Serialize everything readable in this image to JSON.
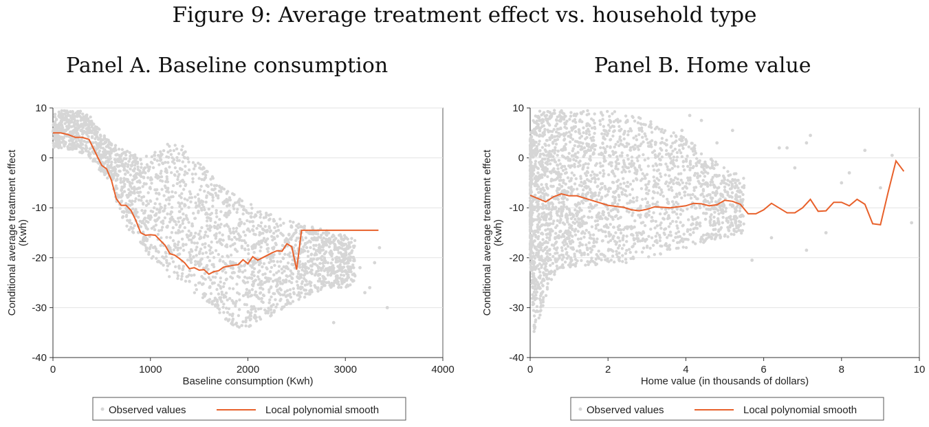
{
  "figure": {
    "title": "Figure 9: Average treatment effect vs. household type"
  },
  "colors": {
    "scatter": "#d6d6d6",
    "smooth": "#e8602a",
    "grid": "#e3e3e3",
    "axis": "#333333"
  },
  "chart_data": [
    {
      "type": "scatter",
      "panel_title": "Panel A. Baseline consumption",
      "xlabel": "Baseline consumption (Kwh)",
      "ylabel": "Conditional average treatment effect (Kwh)",
      "ylabel_lines": [
        "Conditional average treatment effect",
        "(Kwh)"
      ],
      "xlim": [
        0,
        4000
      ],
      "ylim": [
        -40,
        10
      ],
      "xticks": [
        0,
        1000,
        2000,
        3000,
        4000
      ],
      "yticks": [
        10,
        0,
        -10,
        -20,
        -30,
        -40
      ],
      "grid": true,
      "legend_position": "bottom",
      "legend": [
        "Observed values",
        "Local polynomial smooth"
      ],
      "series": [
        {
          "name": "Observed values",
          "kind": "scatter-cloud",
          "envelope": {
            "x": [
              0,
              100,
              200,
              300,
              400,
              500,
              600,
              700,
              800,
              900,
              1000,
              1100,
              1200,
              1300,
              1400,
              1500,
              1600,
              1700,
              1800,
              1900,
              2000,
              2100,
              2200,
              2300,
              2400,
              2500,
              2600,
              2700,
              2800,
              2900,
              3000,
              3100
            ],
            "upper": [
              9,
              9.5,
              9.5,
              9.5,
              8,
              5,
              3,
              2,
              1,
              0.5,
              1,
              2,
              3,
              3,
              1,
              -1,
              -3,
              -5,
              -6,
              -8,
              -9,
              -10,
              -11,
              -12,
              -12.5,
              -13,
              -13.5,
              -14,
              -14.5,
              -15,
              -15.5,
              -16
            ],
            "lower": [
              2,
              2,
              1.5,
              1,
              -0.5,
              -3,
              -5,
              -12,
              -15,
              -17,
              -20,
              -22,
              -24,
              -25,
              -26,
              -28,
              -29,
              -31,
              -33,
              -34,
              -34,
              -33,
              -32,
              -31,
              -30,
              -29,
              -28,
              -27,
              -26,
              -26,
              -26,
              -25
            ]
          },
          "outliers": [
            [
              3350,
              -18
            ],
            [
              3300,
              -21
            ],
            [
              3250,
              -26
            ],
            [
              3200,
              -27
            ],
            [
              3430,
              -30
            ],
            [
              2880,
              -33
            ],
            [
              3150,
              -22
            ],
            [
              3060,
              -19
            ]
          ]
        },
        {
          "name": "Local polynomial smooth",
          "kind": "line",
          "x": [
            0,
            80,
            150,
            230,
            300,
            370,
            450,
            500,
            550,
            600,
            650,
            700,
            750,
            800,
            850,
            900,
            950,
            1000,
            1050,
            1100,
            1150,
            1200,
            1250,
            1300,
            1350,
            1400,
            1450,
            1500,
            1550,
            1600,
            1650,
            1700,
            1750,
            1800,
            1850,
            1900,
            1950,
            2000,
            2050,
            2100,
            2150,
            2200,
            2250,
            2300,
            2350,
            2400,
            2450,
            2500,
            2550,
            2600,
            2650,
            2700,
            2750,
            2800,
            2850,
            2900,
            2950,
            3000,
            3050,
            3100,
            3150,
            3200,
            3250,
            3290,
            3340
          ],
          "y": [
            5,
            5,
            4.7,
            4.1,
            4.1,
            3.7,
            0.5,
            -1.5,
            -2.2,
            -4.5,
            -8.2,
            -9.5,
            -9.5,
            -10.5,
            -12.5,
            -15,
            -15.5,
            -15.4,
            -15.5,
            -16.5,
            -17.5,
            -19.2,
            -19.5,
            -20.2,
            -21,
            -22.2,
            -22,
            -22.5,
            -22.4,
            -23.3,
            -22.8,
            -22.6,
            -21.9,
            -21.7,
            -21.5,
            -21.4,
            -20.4,
            -21.2,
            -19.8,
            -20.5,
            -20,
            -19.5,
            -19,
            -18.6,
            -18.7,
            -17.2,
            -17.8,
            -22.4,
            -14.5,
            -14.5,
            -14.5,
            -14.5,
            -14.5,
            -14.5,
            -14.5,
            -14.5,
            -14.5,
            -14.5,
            -14.5,
            -14.5,
            -14.5,
            -14.5,
            -14.5,
            -14.5,
            -14.5
          ]
        }
      ]
    },
    {
      "type": "scatter",
      "panel_title": "Panel B. Home value",
      "xlabel": "Home value (in thousands of dollars)",
      "ylabel": "Conditional average treatment effect (Kwh)",
      "ylabel_lines": [
        "Conditional average treatment effect",
        "(Kwh)"
      ],
      "xlim": [
        0,
        10
      ],
      "ylim": [
        -40,
        10
      ],
      "xticks": [
        0,
        2,
        4,
        6,
        8,
        10
      ],
      "yticks": [
        10,
        0,
        -10,
        -20,
        -30,
        -40
      ],
      "grid": true,
      "legend_position": "bottom",
      "legend": [
        "Observed values",
        "Local polynomial smooth"
      ],
      "series": [
        {
          "name": "Observed values",
          "kind": "scatter-cloud",
          "envelope": {
            "x": [
              0,
              0.1,
              0.3,
              0.5,
              0.8,
              1.0,
              1.5,
              2.0,
              2.5,
              3.0,
              3.5,
              4.0,
              4.5,
              5.0,
              5.5
            ],
            "upper": [
              4,
              9,
              9.5,
              9.5,
              9.5,
              9.5,
              9.5,
              9.5,
              9,
              8,
              6,
              4,
              1,
              -2,
              -4
            ],
            "lower": [
              -20,
              -35,
              -31,
              -25,
              -22,
              -22,
              -22,
              -21,
              -21,
              -20,
              -19,
              -18,
              -17,
              -16,
              -15
            ]
          },
          "outliers": [
            [
              4.1,
              8.5
            ],
            [
              4.4,
              7.5
            ],
            [
              3.9,
              5.5
            ],
            [
              4.8,
              3
            ],
            [
              5.2,
              5.5
            ],
            [
              7.2,
              4.5
            ],
            [
              7.1,
              3
            ],
            [
              6.6,
              2
            ],
            [
              8.6,
              1.5
            ],
            [
              9.3,
              0.5
            ],
            [
              6.8,
              -2
            ],
            [
              5.7,
              -20.5
            ],
            [
              7.1,
              -18.5
            ],
            [
              9.8,
              -13
            ],
            [
              8.2,
              -3
            ],
            [
              6.2,
              -16
            ],
            [
              7.6,
              -15
            ],
            [
              8.0,
              -5
            ],
            [
              9.0,
              -6
            ],
            [
              6.4,
              2
            ]
          ]
        },
        {
          "name": "Local polynomial smooth",
          "kind": "line",
          "x": [
            0,
            0.4,
            0.6,
            0.8,
            1.0,
            1.2,
            1.5,
            2.0,
            2.4,
            2.6,
            2.8,
            3.0,
            3.2,
            3.6,
            4.0,
            4.2,
            4.4,
            4.6,
            4.8,
            5.0,
            5.2,
            5.4,
            5.6,
            5.8,
            6.0,
            6.2,
            6.6,
            6.8,
            7.0,
            7.2,
            7.4,
            7.6,
            7.8,
            8.0,
            8.2,
            8.4,
            8.6,
            8.8,
            9.0,
            9.2,
            9.4,
            9.6
          ],
          "y": [
            -7.5,
            -8.8,
            -7.8,
            -7.2,
            -7.6,
            -7.6,
            -8.3,
            -9.5,
            -9.9,
            -10.4,
            -10.6,
            -10.3,
            -9.8,
            -10,
            -9.6,
            -9.1,
            -9.2,
            -9.6,
            -9.4,
            -8.5,
            -8.7,
            -9.3,
            -11.2,
            -11.2,
            -10.4,
            -9.1,
            -11,
            -11,
            -10,
            -8.3,
            -10.7,
            -10.6,
            -8.9,
            -8.9,
            -9.6,
            -8.3,
            -9.3,
            -13.2,
            -13.4,
            -6.8,
            -0.6,
            -2.7
          ]
        }
      ]
    }
  ]
}
